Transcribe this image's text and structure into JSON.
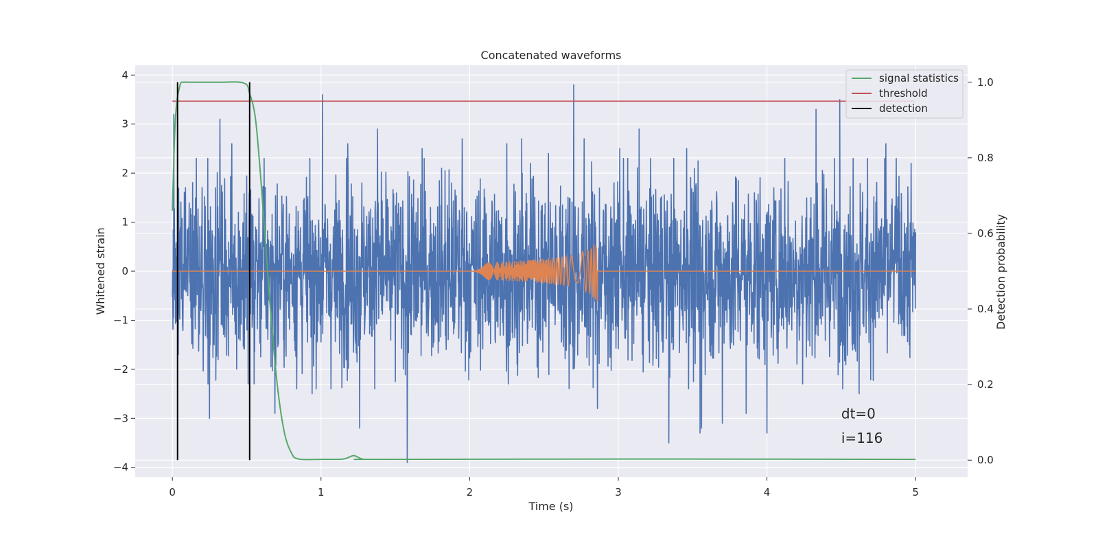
{
  "chart_data": {
    "type": "line",
    "title": "Concatenated waveforms",
    "xlabel": "Time (s)",
    "ylabel": "Whitened strain",
    "ylabel_right": "Detection probability",
    "xlim": [
      -0.25,
      5.35
    ],
    "ylim": [
      -4.2,
      4.2
    ],
    "ylim_right": [
      -0.045,
      1.045
    ],
    "x_ticks": [
      0,
      1,
      2,
      3,
      4,
      5
    ],
    "x_tick_labels": [
      "0",
      "1",
      "2",
      "3",
      "4",
      "5"
    ],
    "y_ticks": [
      -4,
      -3,
      -2,
      -1,
      0,
      1,
      2,
      3,
      4
    ],
    "y_tick_labels": [
      "−4",
      "−3",
      "−2",
      "−1",
      "0",
      "1",
      "2",
      "3",
      "4"
    ],
    "y_right_ticks": [
      0.0,
      0.2,
      0.4,
      0.6,
      0.8,
      1.0
    ],
    "y_right_tick_labels": [
      "0.0",
      "0.2",
      "0.4",
      "0.6",
      "0.8",
      "1.0"
    ],
    "grid": true,
    "legend_position": "top-right",
    "legend": [
      {
        "label": "signal statistics",
        "color": "#55a868"
      },
      {
        "label": "threshold",
        "color": "#c44e52"
      },
      {
        "label": "detection",
        "color": "#000000"
      }
    ],
    "series": [
      {
        "role": "whitened strain",
        "color": "#4c72b0",
        "x_range": [
          0,
          5
        ],
        "typical_amplitude": 1.5,
        "peaks": [
          {
            "x": 0.01,
            "y": 3.2
          },
          {
            "x": 0.04,
            "y": -1.7
          },
          {
            "x": 0.24,
            "y": -2.3
          },
          {
            "x": 0.25,
            "y": 2.5
          },
          {
            "x": 0.25,
            "y": -3.0
          },
          {
            "x": 0.32,
            "y": 3.1
          },
          {
            "x": 0.4,
            "y": 2.6
          },
          {
            "x": 0.51,
            "y": -2.3
          },
          {
            "x": 0.55,
            "y": -2.3
          },
          {
            "x": 0.69,
            "y": -2.9
          },
          {
            "x": 0.94,
            "y": -2.5
          },
          {
            "x": 1.01,
            "y": 3.6
          },
          {
            "x": 1.18,
            "y": 2.6
          },
          {
            "x": 1.26,
            "y": -3.2
          },
          {
            "x": 1.38,
            "y": 2.9
          },
          {
            "x": 1.58,
            "y": -3.9
          },
          {
            "x": 1.68,
            "y": 2.5
          },
          {
            "x": 1.95,
            "y": 2.7
          },
          {
            "x": 2.25,
            "y": 2.6
          },
          {
            "x": 2.26,
            "y": -2.3
          },
          {
            "x": 2.35,
            "y": 2.7
          },
          {
            "x": 2.53,
            "y": 2.4
          },
          {
            "x": 2.7,
            "y": 3.8
          },
          {
            "x": 2.77,
            "y": 2.7
          },
          {
            "x": 2.86,
            "y": -2.8
          },
          {
            "x": 3.01,
            "y": 2.5
          },
          {
            "x": 3.14,
            "y": 2.9
          },
          {
            "x": 3.34,
            "y": -3.5
          },
          {
            "x": 3.46,
            "y": 2.5
          },
          {
            "x": 3.55,
            "y": -3.3
          },
          {
            "x": 3.56,
            "y": -3.2
          },
          {
            "x": 3.7,
            "y": -3.1
          },
          {
            "x": 3.86,
            "y": -2.9
          },
          {
            "x": 4.0,
            "y": -3.3
          },
          {
            "x": 4.12,
            "y": 2.3
          },
          {
            "x": 4.24,
            "y": -2.3
          },
          {
            "x": 4.33,
            "y": 3.3
          },
          {
            "x": 4.49,
            "y": 3.5
          },
          {
            "x": 4.58,
            "y": 2.3
          },
          {
            "x": 4.62,
            "y": -2.5
          },
          {
            "x": 4.8,
            "y": 2.6
          },
          {
            "x": 4.87,
            "y": 2.3
          },
          {
            "x": 4.97,
            "y": 2.2
          }
        ]
      },
      {
        "role": "injected waveform",
        "color": "#dd8452",
        "x": [
          0,
          2.0,
          2.2,
          2.4,
          2.6,
          2.7,
          2.8,
          2.86,
          2.87,
          5
        ],
        "envelope": [
          0,
          0.15,
          0.18,
          0.22,
          0.28,
          0.33,
          0.45,
          0.62,
          0,
          0
        ],
        "note_min": -0.75
      },
      {
        "name": "signal statistics",
        "axis": "right",
        "color": "#55a868",
        "x": [
          0,
          0.02,
          0.05,
          0.08,
          0.12,
          0.3,
          0.48,
          0.52,
          0.56,
          0.6,
          0.65,
          0.7,
          0.75,
          0.8,
          0.85,
          1.0,
          1.15,
          1.22,
          1.28,
          1.4,
          3.25,
          5.0
        ],
        "y": [
          0.66,
          0.9,
          0.99,
          1.0,
          1.0,
          1.0,
          0.998,
          0.97,
          0.9,
          0.72,
          0.45,
          0.22,
          0.08,
          0.02,
          0.003,
          0.002,
          0.003,
          0.012,
          0.003,
          0.002,
          0.003,
          0.002
        ]
      },
      {
        "name": "threshold",
        "axis": "right",
        "color": "#c44e52",
        "x": [
          0,
          5.0
        ],
        "y": [
          0.95,
          0.95
        ]
      }
    ],
    "detections": [
      {
        "x": 0.035,
        "y_min": 0.0,
        "y_max": 1.0
      },
      {
        "x": 0.52,
        "y_min": 0.0,
        "y_max": 1.0
      }
    ],
    "annotations": [
      {
        "text": "dt=0",
        "x": 4.5,
        "y": -3.0
      },
      {
        "text": "i=116",
        "x": 4.5,
        "y": -3.5
      }
    ],
    "colors": {
      "plot_background": "#eaeaf2",
      "grid": "#ffffff"
    }
  }
}
